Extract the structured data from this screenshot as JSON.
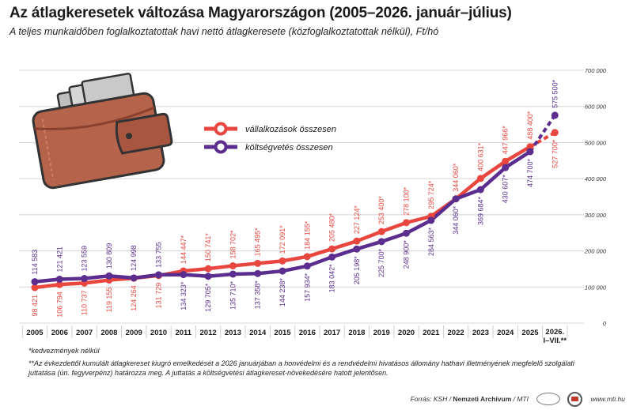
{
  "title": "Az átlagkeresetek változása Magyarországon (2005–2026. január–július)",
  "subtitle": "A teljes munkaidőben foglalkoztatottak havi nettó átlagkeresete (közfoglalkoztatottak nélkül), Ft/hó",
  "chart_data": {
    "type": "line",
    "categories": [
      "2005",
      "2006",
      "2007",
      "2008",
      "2009",
      "2010",
      "2011",
      "2012",
      "2013",
      "2014",
      "2015",
      "2016",
      "2017",
      "2018",
      "2019",
      "2020",
      "2021",
      "2022",
      "2023",
      "2024",
      "2025",
      "2026. I–VII.**"
    ],
    "ylim": [
      0,
      700000
    ],
    "yticks": [
      "0",
      "100 000",
      "200 000",
      "300 000",
      "400 000",
      "500 000",
      "600 000",
      "700 000"
    ],
    "grid": true,
    "legend_position": "top-left",
    "series": [
      {
        "name": "vállalkozások összesen",
        "color": "#e8463f",
        "values": [
          98421,
          106794,
          110737,
          119155,
          124264,
          131729,
          144447,
          150741,
          158702,
          165495,
          172091,
          184155,
          205480,
          227124,
          253400,
          278100,
          295724,
          344060,
          400631,
          447966,
          488400,
          527700
        ],
        "labels": [
          "98 421",
          "106 794",
          "110 737",
          "119 155",
          "124 264",
          "131 729",
          "144 447*",
          "150 741*",
          "158 702*",
          "165 495*",
          "172 091*",
          "184 155*",
          "205 480*",
          "227 124*",
          "253 400*",
          "278 100*",
          "295 724*",
          "344 060*",
          "400 631*",
          "447 966*",
          "488 400*",
          "527 700*"
        ]
      },
      {
        "name": "költségvetés összesen",
        "color": "#5b2d8e",
        "values": [
          114583,
          121421,
          123559,
          130809,
          124998,
          133755,
          134323,
          129705,
          135710,
          137358,
          144238,
          157934,
          183042,
          205198,
          225700,
          248900,
          284563,
          344060,
          369684,
          430607,
          474700,
          575500
        ],
        "labels": [
          "114 583",
          "121 421",
          "123 559",
          "130 809",
          "124 998",
          "133 755",
          "134 323*",
          "129 705*",
          "135 710*",
          "137 358*",
          "144 238*",
          "157 934*",
          "183 042*",
          "205 198*",
          "225 700*",
          "248 900*",
          "284 563*",
          "344 060*",
          "369 684*",
          "430 607*",
          "474 700*",
          "575 500*"
        ]
      }
    ]
  },
  "footnote1": "*kedvezmények nélkül",
  "footnote2": "**Az évkezdettől kumulált átlagkereset kiugró emelkedését a 2026 januárjában a honvédelmi és a rendvédelmi hivatásos állomány hathavi illetményének megfelelő szolgálati juttatása (ún. fegyverpénz) határozza meg. A juttatás a költségvetési átlagkereset-növekedésére hatott jelentősen.",
  "source_prefix": "Forrás: KSH / ",
  "source_bold": "Nemzeti Archívum",
  "source_suffix": " / MTI",
  "website": "www.mti.hu"
}
